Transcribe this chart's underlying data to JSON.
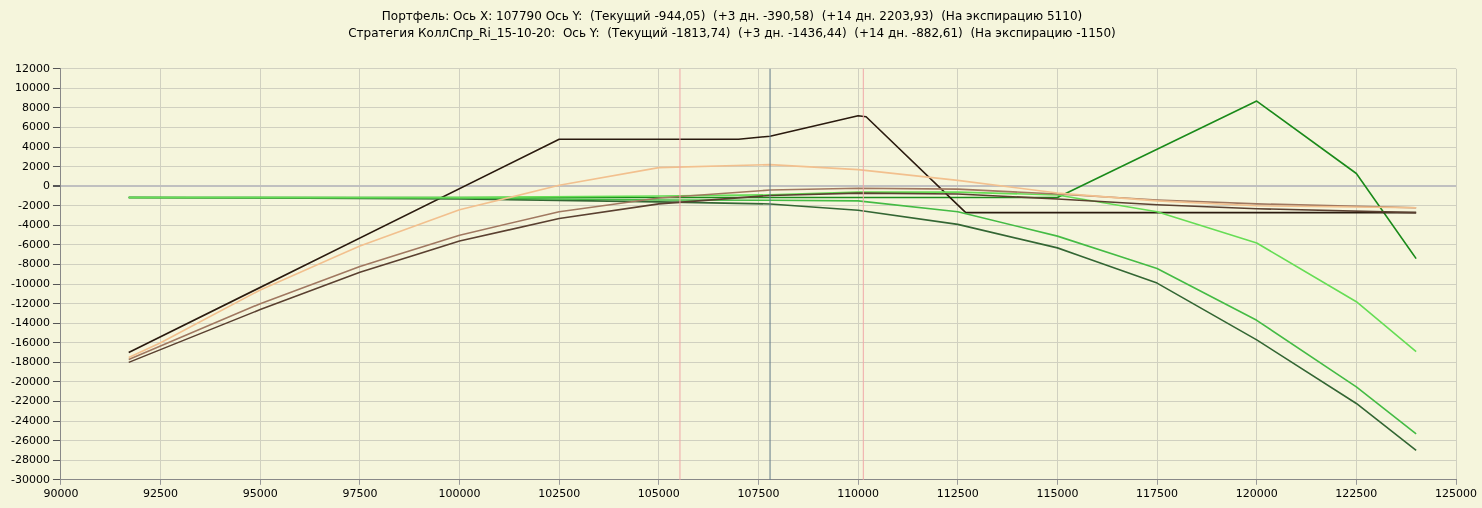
{
  "chart_data": {
    "type": "line",
    "title": "Портфель: Ось X: 107790 Ось Y:  (Текущий -944,05)  (+3 дн. -390,58)  (+14 дн. 2203,93)  (На экспирацию 5110)",
    "subtitle": "Стратегия КоллСпр_Ri_15-10-20:  Ось Y:  (Текущий -1813,74)  (+3 дн. -1436,44)  (+14 дн. -882,61)  (На экспирацию -1150)",
    "xlim": [
      90000,
      125000
    ],
    "xticks": [
      90000,
      92500,
      95000,
      97500,
      100000,
      102500,
      105000,
      107500,
      110000,
      112500,
      115000,
      117500,
      120000,
      122500,
      125000
    ],
    "ylim": [
      -30000,
      12000
    ],
    "yticks": [
      -30000,
      -28000,
      -26000,
      -24000,
      -22000,
      -20000,
      -18000,
      -16000,
      -14000,
      -12000,
      -10000,
      -8000,
      -6000,
      -4000,
      -2000,
      0,
      2000,
      4000,
      6000,
      8000,
      10000,
      12000
    ],
    "grid": true,
    "legend": false,
    "marker": "none",
    "line_style": "solid",
    "series": [
      {
        "color": "#f2c08e",
        "x": [
          91700,
          92500,
          95000,
          97500,
          100000,
          102500,
          105000,
          107790,
          110000,
          112500,
          115000,
          117500,
          120000,
          124000
        ],
        "values": [
          -17500,
          -16000,
          -10600,
          -6100,
          -2400,
          100,
          1900,
          2204,
          1700,
          600,
          -700,
          -1500,
          -2000,
          -2200
        ]
      },
      {
        "color": "#a07860",
        "x": [
          91700,
          95000,
          97500,
          100000,
          102500,
          105000,
          107790,
          110000,
          112500,
          115000,
          117500,
          120000,
          124000
        ],
        "values": [
          -17700,
          -12000,
          -8200,
          -5000,
          -2600,
          -1200,
          -390,
          -200,
          -300,
          -800,
          -1400,
          -1800,
          -2200
        ]
      },
      {
        "color": "#5a4030",
        "x": [
          91700,
          95000,
          97500,
          100000,
          102500,
          105000,
          107790,
          110000,
          112500,
          115000,
          117500,
          120000,
          124000
        ],
        "values": [
          -18000,
          -12600,
          -8800,
          -5600,
          -3300,
          -1800,
          -944,
          -700,
          -800,
          -1300,
          -1900,
          -2300,
          -2700
        ]
      },
      {
        "color": "#66dd55",
        "x": [
          91700,
          100000,
          105000,
          107790,
          110000,
          112500,
          115000,
          117500,
          120000,
          122500,
          124000
        ],
        "values": [
          -1150,
          -1150,
          -1000,
          -882,
          -600,
          -600,
          -900,
          -2600,
          -5800,
          -11800,
          -16900
        ]
      },
      {
        "color": "#44bb44",
        "x": [
          91700,
          100000,
          105000,
          107790,
          110000,
          112500,
          115000,
          117500,
          120000,
          122500,
          124000
        ],
        "values": [
          -1150,
          -1200,
          -1400,
          -1436,
          -1500,
          -2600,
          -5100,
          -8400,
          -13700,
          -20500,
          -25300
        ]
      },
      {
        "color": "#336633",
        "x": [
          91700,
          100000,
          105000,
          107790,
          110000,
          112500,
          115000,
          117500,
          120000,
          122500,
          124000
        ],
        "values": [
          -1150,
          -1300,
          -1600,
          -1813,
          -2450,
          -3900,
          -6300,
          -9900,
          -15700,
          -22200,
          -27000
        ]
      },
      {
        "color": "#2a1a0e",
        "x": [
          91700,
          102500,
          107000,
          107790,
          110000,
          110200,
          112700,
          124000
        ],
        "values": [
          -17000,
          4800,
          4800,
          5110,
          7200,
          7100,
          -2700,
          -2700
        ]
      },
      {
        "color": "#1a8a1a",
        "x": [
          91700,
          115000,
          120000,
          122500,
          124000
        ],
        "values": [
          -1150,
          -1150,
          8700,
          1300,
          -7400
        ]
      }
    ],
    "ref_lines": [
      {
        "axis": "x",
        "value": 105530,
        "color": "#f0a8a8"
      },
      {
        "axis": "x",
        "value": 110130,
        "color": "#f0a8a8"
      },
      {
        "axis": "x",
        "value": 107790,
        "color": "#607888"
      }
    ]
  }
}
